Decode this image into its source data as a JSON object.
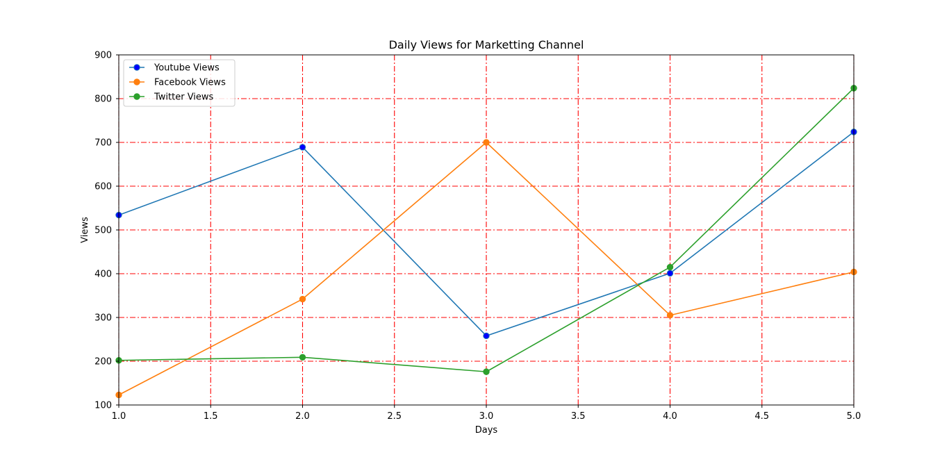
{
  "chart_data": {
    "type": "line",
    "title": "Daily Views for Marketting Channel",
    "xlabel": "Days",
    "ylabel": "Views",
    "x": [
      1,
      2,
      3,
      4,
      5
    ],
    "xlim": [
      1.0,
      5.0
    ],
    "ylim": [
      100,
      900
    ],
    "xticks": [
      "1.0",
      "1.5",
      "2.0",
      "2.5",
      "3.0",
      "3.5",
      "4.0",
      "4.5",
      "5.0"
    ],
    "xtick_values": [
      1.0,
      1.5,
      2.0,
      2.5,
      3.0,
      3.5,
      4.0,
      4.5,
      5.0
    ],
    "yticks": [
      "100",
      "200",
      "300",
      "400",
      "500",
      "600",
      "700",
      "800",
      "900"
    ],
    "ytick_values": [
      100,
      200,
      300,
      400,
      500,
      600,
      700,
      800,
      900
    ],
    "grid": true,
    "grid_color": "#ff0000",
    "grid_style": "dash-dot",
    "legend_position": "top-left",
    "series": [
      {
        "name": "Youtube Views",
        "values": [
          534,
          689,
          258,
          401,
          724
        ],
        "color": "#1f77b4",
        "marker_color": "#0000ff"
      },
      {
        "name": "Facebook Views",
        "values": [
          123,
          342,
          700,
          305,
          404
        ],
        "color": "#ff7f0e",
        "marker_color": "#ff7f0e"
      },
      {
        "name": "Twitter Views",
        "values": [
          202,
          209,
          176,
          415,
          824
        ],
        "color": "#2ca02c",
        "marker_color": "#2ca02c"
      }
    ]
  }
}
